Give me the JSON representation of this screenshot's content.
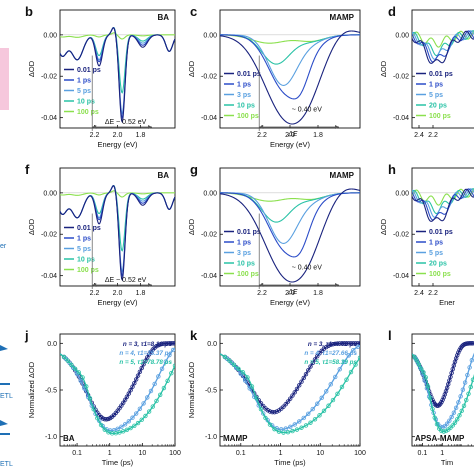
{
  "colors": {
    "t0": "#1a237e",
    "t1": "#2b4cc8",
    "t2": "#5aa0e0",
    "t3": "#29c2a6",
    "t4": "#8be04e",
    "pink": "#f6c7dc",
    "side_blue": "#1e6fb5"
  },
  "side": {
    "texts": [
      "er",
      "ETL",
      "ETL"
    ]
  },
  "chart_data": [
    {
      "id": "b",
      "type": "line",
      "title": "BA",
      "xlabel": "Energy (eV)",
      "ylabel": "ΔOD",
      "xlim": [
        2.5,
        1.5
      ],
      "ylim": [
        -0.045,
        0.012
      ],
      "xticks": [
        2.2,
        2.0,
        1.8
      ],
      "xtick_labels": [
        "2.2",
        "2.0",
        "1.8"
      ],
      "yticks": [
        0.0,
        -0.02,
        -0.04
      ],
      "ytick_labels": [
        "0.00",
        "-0.02",
        "-0.04"
      ],
      "legend": [
        "0.01 ps",
        "1 ps",
        "5 ps",
        "10 ps",
        "100 ps"
      ],
      "annotation": "ΔE ~ 0.52 eV",
      "peaks": {
        "bleach": 1.96,
        "side": 2.16,
        "depth": [
          0.042,
          0.04,
          0.038,
          0.028,
          0.002
        ]
      }
    },
    {
      "id": "c",
      "type": "line",
      "title": "MAMP",
      "xlabel": "Energy (eV)",
      "ylabel": "ΔOD",
      "xlim": [
        2.5,
        1.5
      ],
      "ylim": [
        -0.045,
        0.012
      ],
      "xticks": [
        2.2,
        2.0,
        1.8
      ],
      "xtick_labels": [
        "2.2",
        "2.0",
        "1.8"
      ],
      "yticks": [
        0.0,
        -0.02,
        -0.04
      ],
      "ytick_labels": [
        "0.00",
        "-0.02",
        "-0.04"
      ],
      "legend": [
        "0.01 ps",
        "1 ps",
        "3 ps",
        "10 ps",
        "100 ps"
      ],
      "annotation": "~ 0.40 eV",
      "dE_label": "ΔE"
    },
    {
      "id": "d",
      "type": "line",
      "title": "",
      "xlabel": "",
      "ylabel": "ΔOD",
      "xlim": [
        2.5,
        1.5
      ],
      "ylim": [
        -0.045,
        0.012
      ],
      "xticks": [
        2.4,
        2.2
      ],
      "xtick_labels": [
        "2.4",
        "2.2"
      ],
      "yticks": [
        0.0,
        -0.02,
        -0.04
      ],
      "ytick_labels": [
        "0.00",
        "-0.02",
        "-0.04"
      ],
      "legend": [
        "0.01 ps",
        "1 ps",
        "5 ps",
        "20 ps",
        "100 ps"
      ]
    },
    {
      "id": "f",
      "type": "line",
      "title": "BA",
      "xlabel": "Energy (eV)",
      "ylabel": "ΔOD",
      "xlim": [
        2.5,
        1.5
      ],
      "ylim": [
        -0.045,
        0.012
      ],
      "xticks": [
        2.2,
        2.0,
        1.8
      ],
      "xtick_labels": [
        "2.2",
        "2.0",
        "1.8"
      ],
      "yticks": [
        0.0,
        -0.02,
        -0.04
      ],
      "ytick_labels": [
        "0.00",
        "-0.02",
        "-0.04"
      ],
      "legend": [
        "0.01 ps",
        "1 ps",
        "5 ps",
        "10 ps",
        "100 ps"
      ],
      "annotation": "ΔE ~ 0.52 eV"
    },
    {
      "id": "g",
      "type": "line",
      "title": "MAMP",
      "xlabel": "Energy (eV)",
      "ylabel": "ΔOD",
      "xlim": [
        2.5,
        1.5
      ],
      "ylim": [
        -0.045,
        0.012
      ],
      "xticks": [
        2.2,
        2.0,
        1.8
      ],
      "xtick_labels": [
        "2.2",
        "2.0",
        "1.8"
      ],
      "yticks": [
        0.0,
        -0.02,
        -0.04
      ],
      "ytick_labels": [
        "0.00",
        "-0.02",
        "-0.04"
      ],
      "legend": [
        "0.01 ps",
        "1 ps",
        "3 ps",
        "10 ps",
        "100 ps"
      ],
      "annotation": "~ 0.40 eV",
      "dE_label": "ΔE"
    },
    {
      "id": "h",
      "type": "line",
      "title": "",
      "xlabel": "Ener",
      "ylabel": "ΔOD",
      "xlim": [
        2.5,
        1.5
      ],
      "ylim": [
        -0.045,
        0.012
      ],
      "xticks": [
        2.4,
        2.2
      ],
      "xtick_labels": [
        "2.4",
        "2.2"
      ],
      "yticks": [
        0.0,
        -0.02,
        -0.04
      ],
      "ytick_labels": [
        "0.00",
        "-0.02",
        "-0.04"
      ],
      "legend": [
        "0.01 ps",
        "1 ps",
        "5 ps",
        "20 ps",
        "100 ps"
      ]
    },
    {
      "id": "j",
      "type": "scatter",
      "title": "BA",
      "xlabel": "Time (ps)",
      "ylabel": "Normalized ΔOD",
      "xscale": "log",
      "xlim": [
        0.03,
        100
      ],
      "ylim": [
        -1.1,
        0.1
      ],
      "xticks": [
        0.1,
        1,
        10,
        100
      ],
      "xtick_labels": [
        "0.1",
        "1",
        "10",
        "100"
      ],
      "yticks": [
        0.0,
        -0.5,
        -1.0
      ],
      "ytick_labels": [
        "0.0",
        "-0.5",
        "-1.0"
      ],
      "fit_labels": [
        "n = 3, τ1=8.19 ps",
        "n = 4, τ1=35.37 ps",
        "n = 5, τ1=78.78 ps"
      ],
      "series": [
        {
          "n": 3,
          "tau": 8.19
        },
        {
          "n": 4,
          "tau": 35.37
        },
        {
          "n": 5,
          "tau": 78.78
        }
      ]
    },
    {
      "id": "k",
      "type": "scatter",
      "title": "MAMP",
      "xlabel": "Time (ps)",
      "ylabel": "Normalized ΔOD",
      "xscale": "log",
      "xlim": [
        0.03,
        100
      ],
      "ylim": [
        -1.1,
        0.1
      ],
      "xticks": [
        0.1,
        1,
        10,
        100
      ],
      "xtick_labels": [
        "0.1",
        "1",
        "10",
        "100"
      ],
      "yticks": [
        0.0,
        -0.5,
        -1.0
      ],
      "ytick_labels": [
        "0.0",
        "-0.5",
        "-1.0"
      ],
      "fit_labels": [
        "n = 3, τ1=4.62 ps",
        "n = 4, τ1=27.66 ps",
        "n = 5, τ1=58.39 ps"
      ],
      "series": [
        {
          "n": 3,
          "tau": 4.62
        },
        {
          "n": 4,
          "tau": 27.66
        },
        {
          "n": 5,
          "tau": 58.39
        }
      ]
    },
    {
      "id": "l",
      "type": "scatter",
      "title": "APSA-MAMP",
      "xlabel": "Tim",
      "ylabel": "",
      "xscale": "log",
      "xlim": [
        0.03,
        100
      ],
      "ylim": [
        -1.1,
        0.1
      ],
      "xticks": [
        0.1,
        1
      ],
      "xtick_labels": [
        "0.1",
        "1"
      ],
      "yticks": [
        0.0,
        -0.5,
        -1.0
      ],
      "ytick_labels": [
        "",
        "",
        ""
      ],
      "fit_labels": [],
      "series": [
        {
          "n": 3,
          "tau": 3.0
        },
        {
          "n": 4,
          "tau": 20.0
        },
        {
          "n": 5,
          "tau": 45.0
        }
      ]
    }
  ]
}
